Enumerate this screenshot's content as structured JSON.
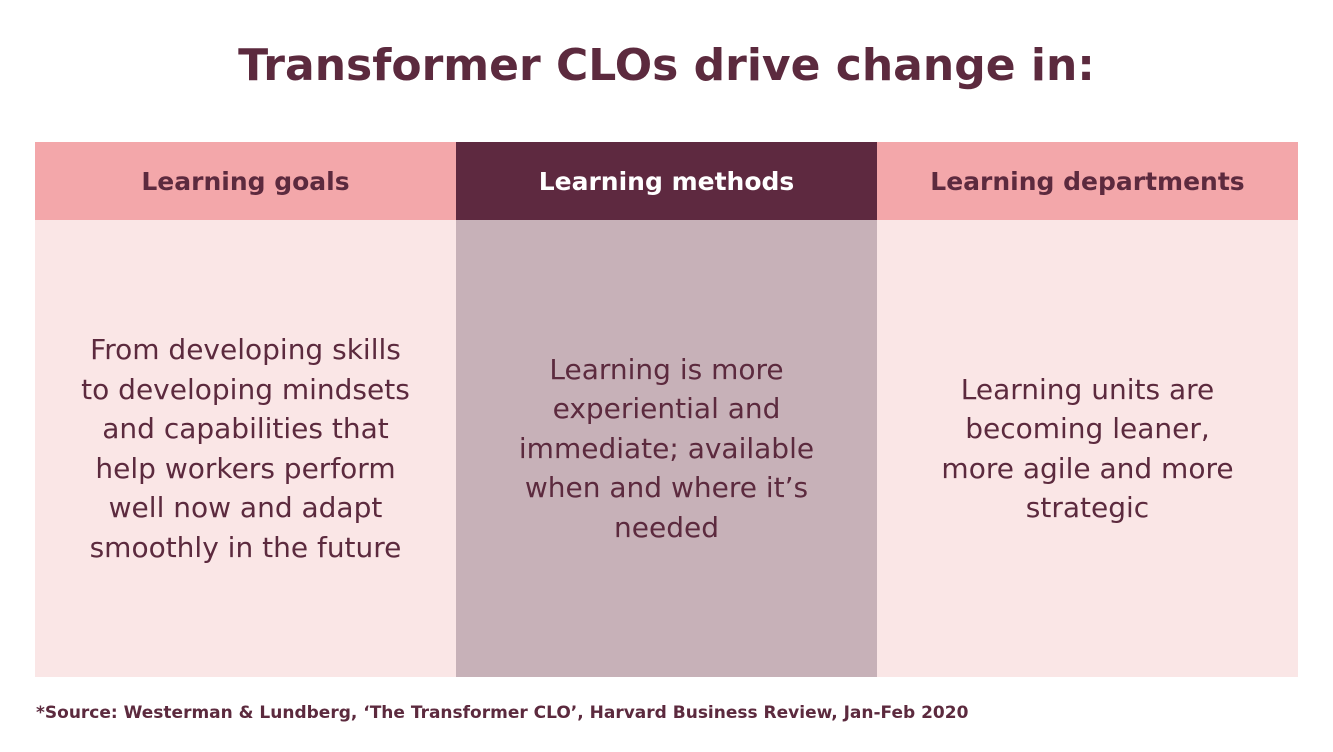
{
  "title": "Transformer CLOs drive change in:",
  "columns": [
    {
      "header": "Learning goals",
      "body": "From developing skills to developing mindsets and capabilities that help workers perform well now and adapt smoothly in the future"
    },
    {
      "header": "Learning methods",
      "body": "Learning is more experiential and immediate; available when and where it’s needed"
    },
    {
      "header": "Learning departments",
      "body": "Learning units are becoming leaner, more agile and more strategic"
    }
  ],
  "source": "*Source: Westerman & Lundberg, ‘The Transformer CLO’, Harvard Business Review, Jan-Feb 2020",
  "colors": {
    "header_light": "#f3a7aa",
    "header_dark": "#5e2940",
    "body_light": "#fae6e6",
    "body_dark": "#c7b1b8",
    "text": "#5c2a3e"
  }
}
